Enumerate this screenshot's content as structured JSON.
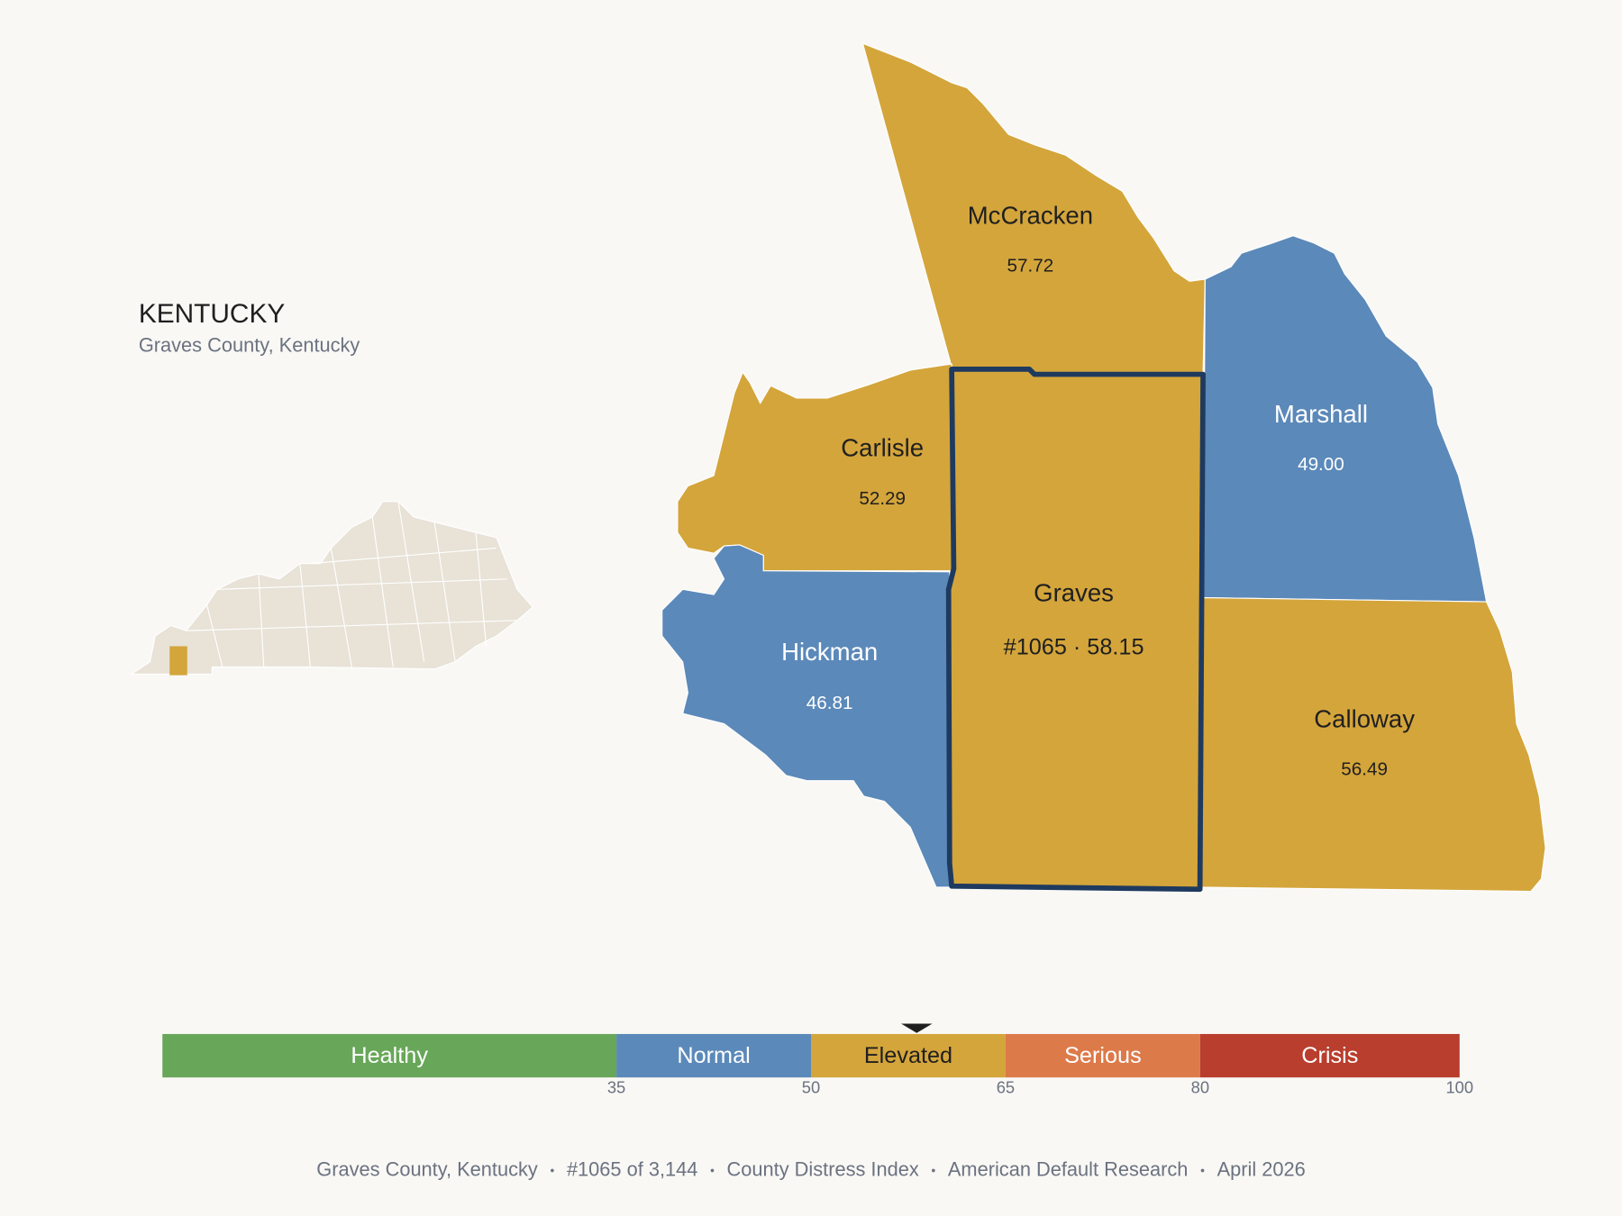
{
  "header": {
    "title": "KENTUCKY",
    "subtitle": "Graves County, Kentucky"
  },
  "map": {
    "selected": "Graves",
    "outline_color": "#1f3a5f",
    "counties": [
      {
        "name": "McCracken",
        "value": 57.72
      },
      {
        "name": "Carlisle",
        "value": 52.29
      },
      {
        "name": "Hickman",
        "value": 46.81
      },
      {
        "name": "Graves",
        "value": 58.15,
        "value_label": "#1065 · 58.15"
      },
      {
        "name": "Marshall",
        "value": 49.0,
        "value_label": "49.00"
      },
      {
        "name": "Calloway",
        "value": 56.49
      }
    ]
  },
  "legend": {
    "lim": [
      0,
      100
    ],
    "ticks": [
      35,
      50,
      65,
      80,
      100
    ],
    "bands": [
      {
        "name": "Healthy",
        "start": 0,
        "end": 35,
        "color": "#68a759",
        "text_color": "#ffffff"
      },
      {
        "name": "Normal",
        "start": 35,
        "end": 50,
        "color": "#5b89b9",
        "text_color": "#ffffff"
      },
      {
        "name": "Elevated",
        "start": 50,
        "end": 65,
        "color": "#d4a53b",
        "text_color": "#1f1f1f"
      },
      {
        "name": "Serious",
        "start": 65,
        "end": 80,
        "color": "#dd7a4a",
        "text_color": "#ffffff"
      },
      {
        "name": "Crisis",
        "start": 80,
        "end": 100,
        "color": "#b93e2d",
        "text_color": "#ffffff"
      }
    ]
  },
  "footer": {
    "items": [
      "Graves County, Kentucky",
      "#1065 of 3,144",
      "County Distress Index",
      "American Default Research",
      "April 2026"
    ]
  }
}
